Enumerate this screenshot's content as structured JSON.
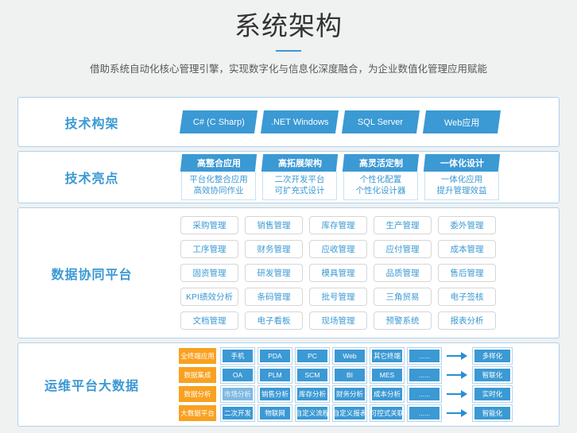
{
  "page": {
    "title": "系统架构",
    "subtitle": "借助系统自动化核心管理引擎，实现数字化与信息化深度融合，为企业数值化管理应用赋能"
  },
  "colors": {
    "accent_blue": "#3b99d4",
    "orange": "#f9a120",
    "card_border": "#aed2ec",
    "page_background": "#f0f1f1"
  },
  "sections": {
    "tech_framework": {
      "label": "技术构架",
      "buttons": [
        "C# (C Sharp)",
        ".NET Windows",
        "SQL Server",
        "Web应用"
      ]
    },
    "tech_highlights": {
      "label": "技术亮点",
      "columns": [
        {
          "header": "高整合应用",
          "lines": [
            "平台化整合应用",
            "高效协同作业"
          ]
        },
        {
          "header": "高拓展架构",
          "lines": [
            "二次开发平台",
            "可扩充式设计"
          ]
        },
        {
          "header": "高灵活定制",
          "lines": [
            "个性化配置",
            "个性化设计器"
          ]
        },
        {
          "header": "一体化设计",
          "lines": [
            "一体化应用",
            "提升管理效益"
          ]
        }
      ]
    },
    "data_platform": {
      "label": "数据协同平台",
      "grid": [
        [
          "采购管理",
          "销售管理",
          "库存管理",
          "生产管理",
          "委外管理"
        ],
        [
          "工序管理",
          "财务管理",
          "应收管理",
          "应付管理",
          "成本管理"
        ],
        [
          "固资管理",
          "研发管理",
          "模具管理",
          "品质管理",
          "售后管理"
        ],
        [
          "KPI绩效分析",
          "条码管理",
          "批号管理",
          "三角贸易",
          "电子签核"
        ],
        [
          "文档管理",
          "电子看板",
          "现场管理",
          "预警系统",
          "报表分析"
        ]
      ]
    },
    "ops_bigdata": {
      "label": "运维平台大数据",
      "rows": [
        {
          "category": "全终端应用",
          "items": [
            "手机",
            "PDA",
            "PC",
            "Web",
            "其它终端",
            "......"
          ],
          "result": "多样化"
        },
        {
          "category": "数据集成",
          "items": [
            "OA",
            "PLM",
            "SCM",
            "BI",
            "MES",
            "......"
          ],
          "result": "智联化"
        },
        {
          "category": "数据分析",
          "items": [
            "市场分析",
            "销售分析",
            "库存分析",
            "财务分析",
            "成本分析",
            "......"
          ],
          "result": "实时化",
          "light_item_index": 0
        },
        {
          "category": "大数据平台",
          "items": [
            "二次开发",
            "物联网",
            "自定义流程",
            "自定义报表",
            "可控式关联",
            "......"
          ],
          "result": "智能化"
        }
      ]
    }
  }
}
